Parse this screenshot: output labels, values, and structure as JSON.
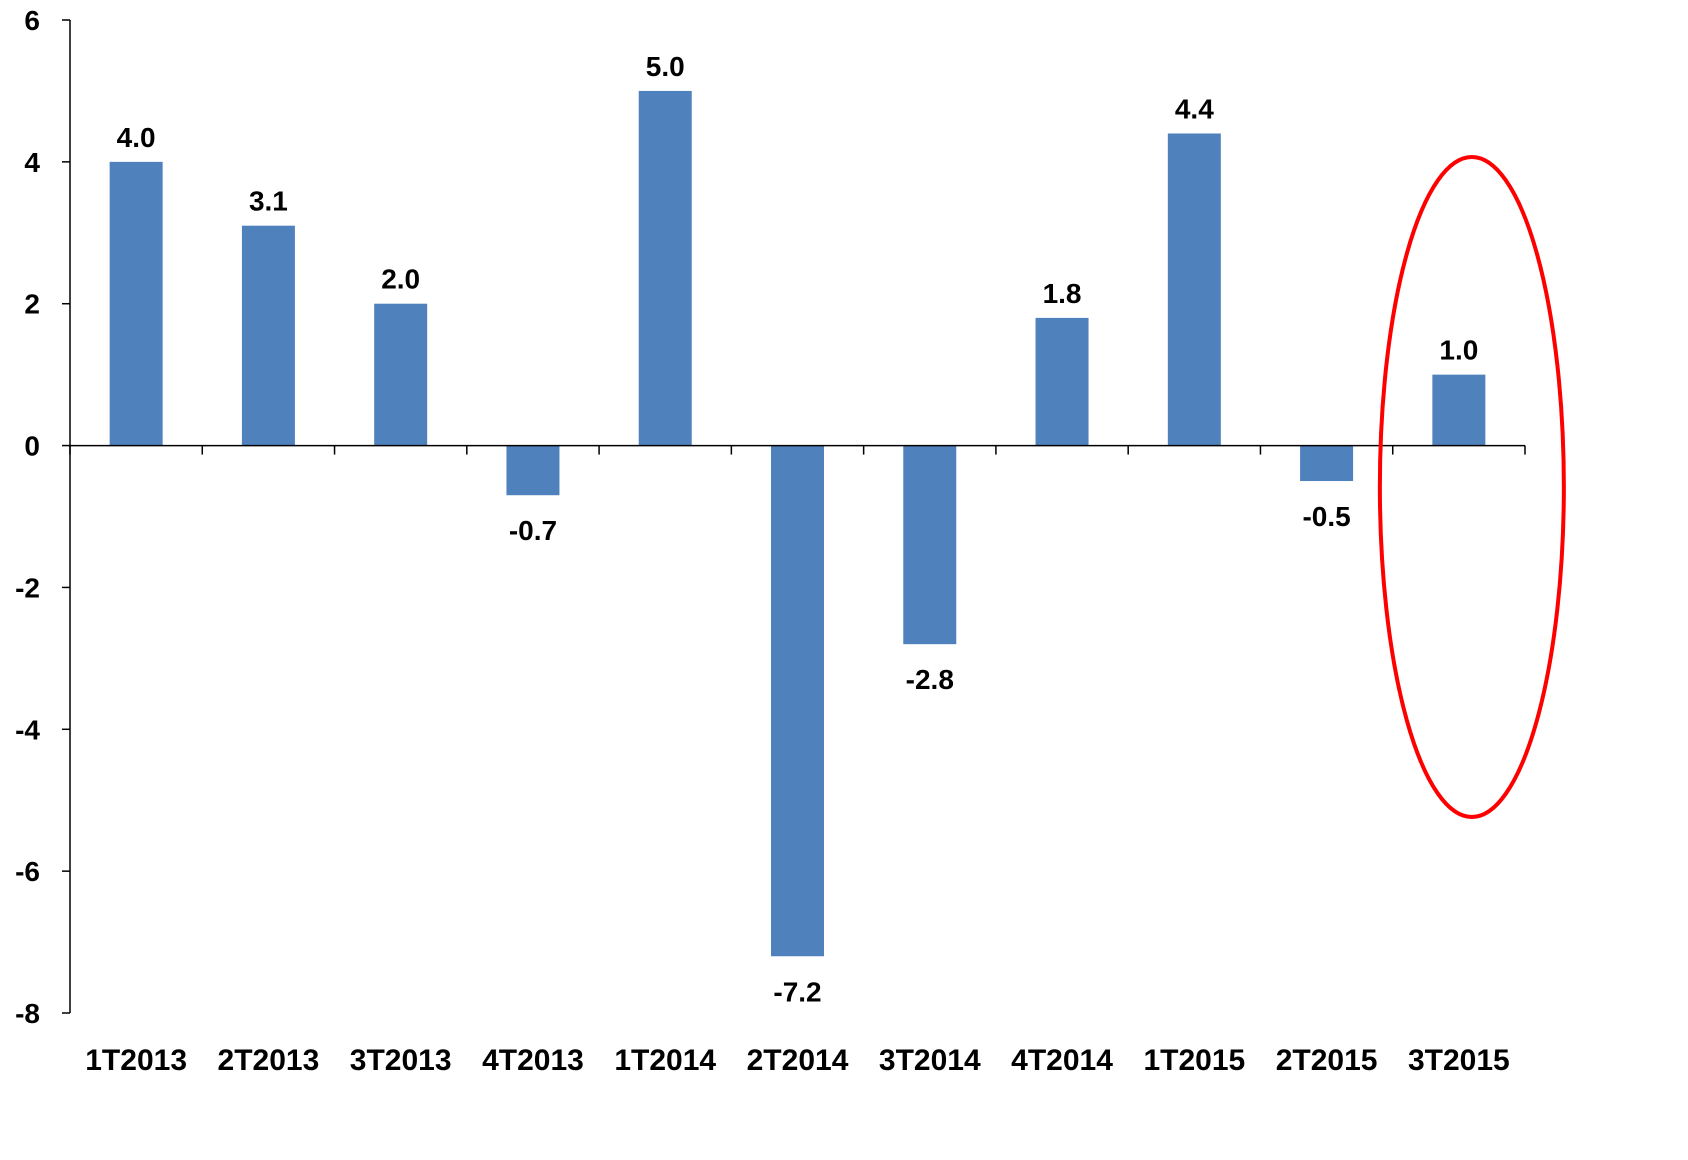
{
  "chart_data": {
    "type": "bar",
    "title": "",
    "xlabel": "",
    "ylabel": "",
    "categories": [
      "1T2013",
      "2T2013",
      "3T2013",
      "4T2013",
      "1T2014",
      "2T2014",
      "3T2014",
      "4T2014",
      "1T2015",
      "2T2015",
      "3T2015"
    ],
    "values": [
      4.0,
      3.1,
      2.0,
      -0.7,
      5.0,
      -7.2,
      -2.8,
      1.8,
      4.4,
      -0.5,
      1.0
    ],
    "data_labels": [
      "4.0",
      "3.1",
      "2.0",
      "-0.7",
      "5.0",
      "-7.2",
      "-2.8",
      "1.8",
      "4.4",
      "-0.5",
      "1.0"
    ],
    "ylim": [
      -8,
      6
    ],
    "yticks": [
      6,
      4,
      2,
      0,
      -2,
      -4,
      -6,
      -8
    ],
    "ytick_labels": [
      "6",
      "4",
      "2",
      "0",
      "-2",
      "-4",
      "-6",
      "-8"
    ],
    "grid": false,
    "legend": "none",
    "highlight": {
      "category": "3T2015",
      "shape": "ellipse",
      "color": "#ff0000"
    },
    "colors": {
      "bar": "#4f81bd",
      "axis": "#000000",
      "labels": "#000000"
    }
  }
}
